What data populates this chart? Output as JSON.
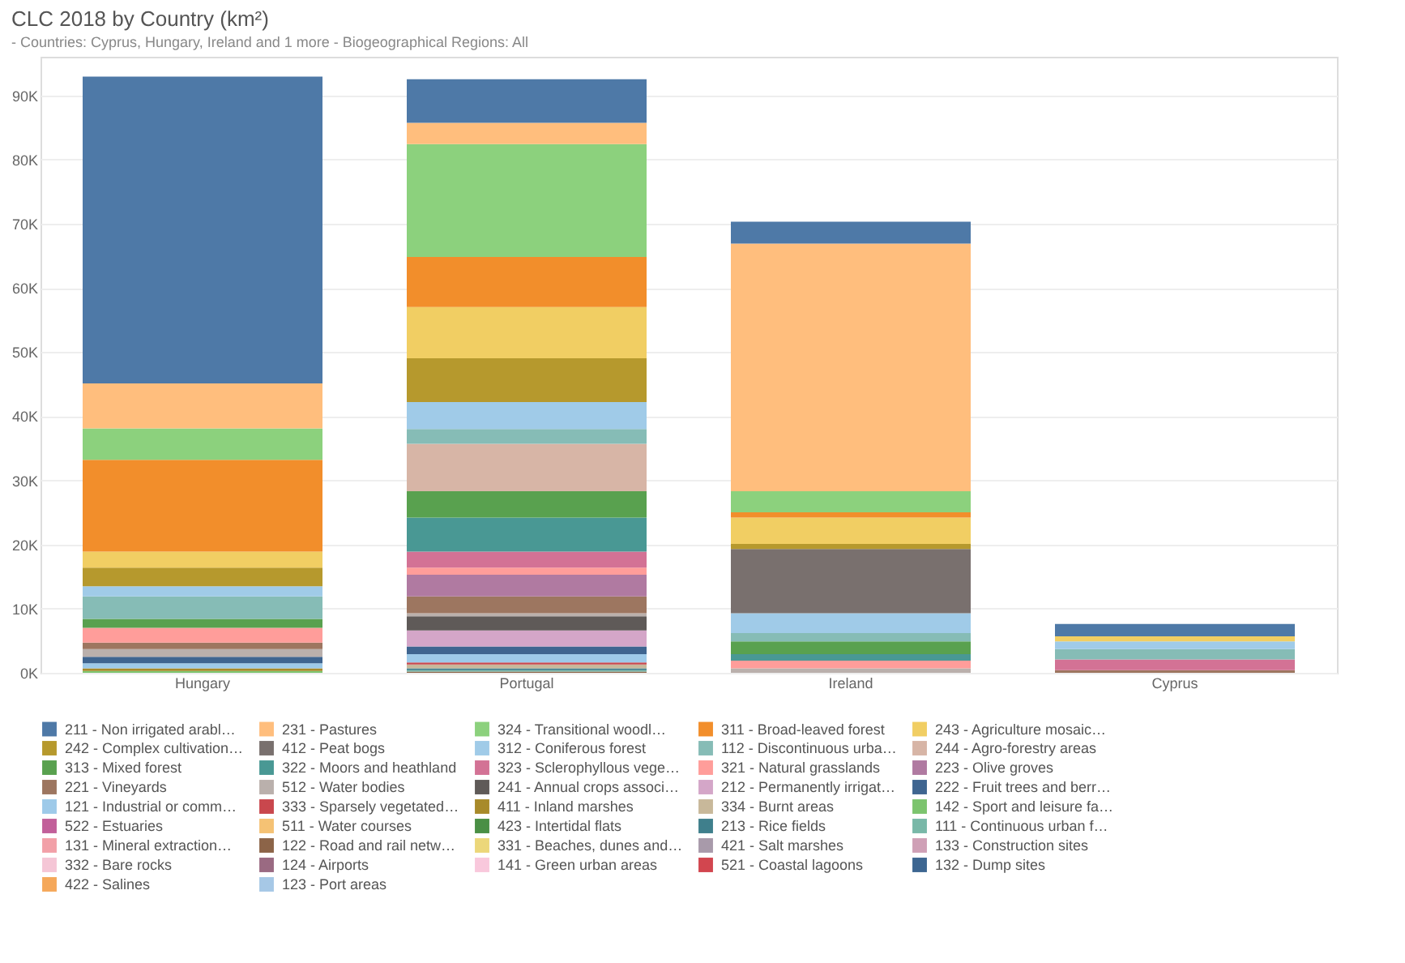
{
  "chart_data": {
    "type": "bar",
    "stacked": true,
    "title": "CLC 2018 by Country (km²)",
    "subtitle": "- Countries: Cyprus, Hungary, Ireland and 1 more - Biogeographical Regions: All",
    "categories": [
      "Hungary",
      "Portugal",
      "Ireland",
      "Cyprus"
    ],
    "ylim": [
      0,
      96000
    ],
    "yticks": [
      {
        "value": 0,
        "label": "0K"
      },
      {
        "value": 10000,
        "label": "10K"
      },
      {
        "value": 20000,
        "label": "20K"
      },
      {
        "value": 30000,
        "label": "30K"
      },
      {
        "value": 40000,
        "label": "40K"
      },
      {
        "value": 50000,
        "label": "50K"
      },
      {
        "value": 60000,
        "label": "60K"
      },
      {
        "value": 70000,
        "label": "70K"
      },
      {
        "value": 80000,
        "label": "80K"
      },
      {
        "value": 90000,
        "label": "90K"
      }
    ],
    "grid": "y",
    "legend": "bottom",
    "series": [
      {
        "name": "123 - Port areas",
        "color": "#a6c8e6",
        "values": [
          null,
          null,
          null,
          null
        ]
      },
      {
        "name": "422 - Salines",
        "color": "#f5a85a",
        "values": [
          null,
          null,
          null,
          null
        ]
      },
      {
        "name": "132 - Dump sites",
        "color": "#3d6691",
        "values": [
          null,
          null,
          null,
          null
        ]
      },
      {
        "name": "521 - Coastal lagoons",
        "color": "#d2464f",
        "values": [
          null,
          null,
          null,
          null
        ]
      },
      {
        "name": "141 - Green urban areas",
        "color": "#f9c8dc",
        "values": [
          null,
          null,
          null,
          null
        ]
      },
      {
        "name": "124 - Airports",
        "color": "#9a6a82",
        "values": [
          null,
          null,
          null,
          null
        ]
      },
      {
        "name": "332 - Bare rocks",
        "color": "#f5c6d6",
        "values": [
          null,
          null,
          null,
          null
        ]
      },
      {
        "name": "133 - Construction sites",
        "color": "#cfa0b6",
        "values": [
          null,
          null,
          null,
          null
        ]
      },
      {
        "name": "421 - Salt marshes",
        "color": "#a89aaa",
        "values": [
          null,
          null,
          null,
          null
        ]
      },
      {
        "name": "331 - Beaches, dunes and…",
        "color": "#ecd77a",
        "values": [
          null,
          null,
          null,
          null
        ]
      },
      {
        "name": "122 - Road and rail netw…",
        "color": "#8c6448",
        "values": [
          null,
          200,
          null,
          null
        ]
      },
      {
        "name": "131 - Mineral extraction…",
        "color": "#f2a0a8",
        "values": [
          null,
          null,
          null,
          null
        ]
      },
      {
        "name": "111 - Continuous urban f…",
        "color": "#79b8a8",
        "values": [
          null,
          200,
          null,
          null
        ]
      },
      {
        "name": "213 - Rice fields",
        "color": "#3f7f8c",
        "values": [
          null,
          300,
          null,
          null
        ]
      },
      {
        "name": "423 - Intertidal flats",
        "color": "#4a8f45",
        "values": [
          null,
          null,
          null,
          null
        ]
      },
      {
        "name": "511 - Water courses",
        "color": "#f5c274",
        "values": [
          null,
          null,
          null,
          null
        ]
      },
      {
        "name": "522 - Estuaries",
        "color": "#c2609a",
        "values": [
          null,
          null,
          null,
          null
        ]
      },
      {
        "name": "142 - Sport and leisure fa…",
        "color": "#7cc46e",
        "values": [
          300,
          null,
          null,
          null
        ]
      },
      {
        "name": "334 - Burnt areas",
        "color": "#c8b89a",
        "values": [
          null,
          600,
          null,
          null
        ]
      },
      {
        "name": "411 - Inland marshes",
        "color": "#a88a2a",
        "values": [
          400,
          null,
          null,
          null
        ]
      },
      {
        "name": "333 - Sparsely vegetated…",
        "color": "#c9474d",
        "values": [
          null,
          300,
          null,
          null
        ]
      },
      {
        "name": "121 - Industrial or comm…",
        "color": "#9ecae9",
        "values": [
          800,
          1300,
          null,
          null
        ]
      },
      {
        "name": "222 - Fruit trees and berr…",
        "color": "#3f6590",
        "values": [
          1000,
          1200,
          null,
          null
        ]
      },
      {
        "name": "212 - Permanently irrigat…",
        "color": "#d4a6c8",
        "values": [
          null,
          2500,
          null,
          null
        ]
      },
      {
        "name": "241 - Annual crops associ…",
        "color": "#5f5a58",
        "values": [
          null,
          2200,
          null,
          null
        ]
      },
      {
        "name": "512 - Water bodies",
        "color": "#bab0ac",
        "values": [
          1200,
          500,
          700,
          null
        ]
      },
      {
        "name": "221 - Vineyards",
        "color": "#9d7660",
        "values": [
          1000,
          2600,
          null,
          400
        ]
      },
      {
        "name": "223 - Olive groves",
        "color": "#b07aa1",
        "values": [
          null,
          3400,
          null,
          null
        ]
      },
      {
        "name": "321 - Natural grasslands",
        "color": "#ff9d9a",
        "values": [
          2300,
          1100,
          1200,
          null
        ]
      },
      {
        "name": "323 - Sclerophyllous vege…",
        "color": "#d37295",
        "values": [
          null,
          2500,
          null,
          1700
        ]
      },
      {
        "name": "322 - Moors and heathland",
        "color": "#499894",
        "values": [
          null,
          5300,
          1000,
          null
        ]
      },
      {
        "name": "313 - Mixed forest",
        "color": "#59a14f",
        "values": [
          1400,
          4100,
          2000,
          null
        ]
      },
      {
        "name": "244 - Agro-forestry areas",
        "color": "#d7b5a6",
        "values": [
          null,
          7400,
          null,
          null
        ]
      },
      {
        "name": "112 - Discontinuous urba…",
        "color": "#86bcb6",
        "values": [
          3500,
          2300,
          1300,
          1600
        ]
      },
      {
        "name": "312 - Coniferous forest",
        "color": "#a0cbe8",
        "values": [
          1600,
          4200,
          3100,
          1200
        ]
      },
      {
        "name": "412 - Peat bogs",
        "color": "#79706e",
        "values": [
          null,
          null,
          10000,
          null
        ]
      },
      {
        "name": "242 - Complex cultivation…",
        "color": "#b6992d",
        "values": [
          2900,
          6800,
          800,
          null
        ]
      },
      {
        "name": "243 - Agriculture mosaic…",
        "color": "#f1ce63",
        "values": [
          2500,
          8000,
          4100,
          800
        ]
      },
      {
        "name": "311 - Broad-leaved forest",
        "color": "#f28e2b",
        "values": [
          14300,
          7800,
          800,
          null
        ]
      },
      {
        "name": "324 - Transitional woodl…",
        "color": "#8cd17d",
        "values": [
          4900,
          17600,
          3300,
          null
        ]
      },
      {
        "name": "231 - Pastures",
        "color": "#ffbe7d",
        "values": [
          7000,
          3300,
          38600,
          null
        ]
      },
      {
        "name": "211 - Non irrigated arabl…",
        "color": "#4e79a7",
        "values": [
          47800,
          6800,
          3400,
          1900
        ]
      }
    ]
  }
}
